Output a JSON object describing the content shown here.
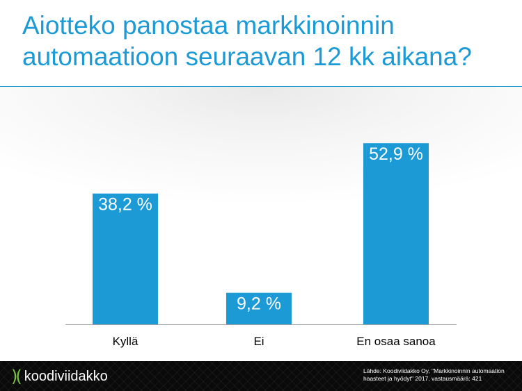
{
  "title": "Aiotteko panostaa markkinoinnin automaatioon seuraavan 12 kk aikana?",
  "chart_data": {
    "type": "bar",
    "categories": [
      "Kyllä",
      "Ei",
      "En osaa sanoa"
    ],
    "values": [
      38.2,
      9.2,
      52.9
    ],
    "data_labels": [
      "38,2 %",
      "9,2 %",
      "52,9 %"
    ],
    "ylim": [
      0,
      60
    ],
    "grid": false,
    "bar_color": "#1b9ad6"
  },
  "footer": {
    "logo_text": "koodiviidakko",
    "source_line1": "Lähde: Koodiviidakko Oy, \"Markkinoinnin automaation",
    "source_line2": "haasteet ja hyödyt\" 2017, vastausmäärä: 421"
  },
  "colors": {
    "accent": "#1b9ad6",
    "logo_green": "#7ec242",
    "footer_bg": "#0a0a0a"
  }
}
